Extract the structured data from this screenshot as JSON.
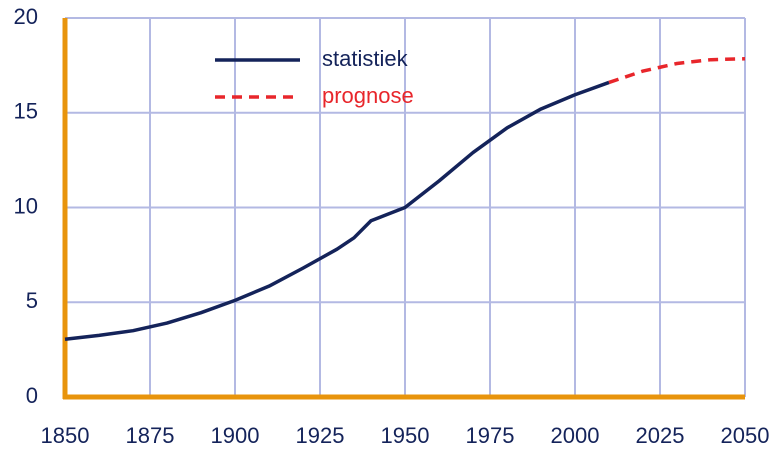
{
  "chart_data": {
    "type": "line",
    "xlim": [
      1850,
      2050
    ],
    "xticks": [
      1850,
      1875,
      1900,
      1925,
      1950,
      1975,
      2000,
      2025,
      2050
    ],
    "ylim": [
      0,
      20
    ],
    "yticks": [
      0,
      5,
      10,
      15,
      20
    ],
    "grid": true,
    "series": [
      {
        "name": "statistiek",
        "color": "#14235a",
        "line_style": "solid",
        "x": [
          1850,
          1860,
          1870,
          1880,
          1890,
          1900,
          1910,
          1920,
          1930,
          1935,
          1940,
          1945,
          1950,
          1960,
          1970,
          1980,
          1990,
          2000,
          2010
        ],
        "values": [
          3.05,
          3.25,
          3.5,
          3.9,
          4.45,
          5.1,
          5.85,
          6.8,
          7.8,
          8.4,
          9.3,
          9.65,
          10.0,
          11.4,
          12.9,
          14.2,
          15.2,
          15.95,
          16.6
        ]
      },
      {
        "name": "prognose",
        "color": "#e8262b",
        "line_style": "dashed",
        "x": [
          2010,
          2020,
          2030,
          2040,
          2050
        ],
        "values": [
          16.6,
          17.2,
          17.6,
          17.8,
          17.85
        ]
      }
    ]
  }
}
